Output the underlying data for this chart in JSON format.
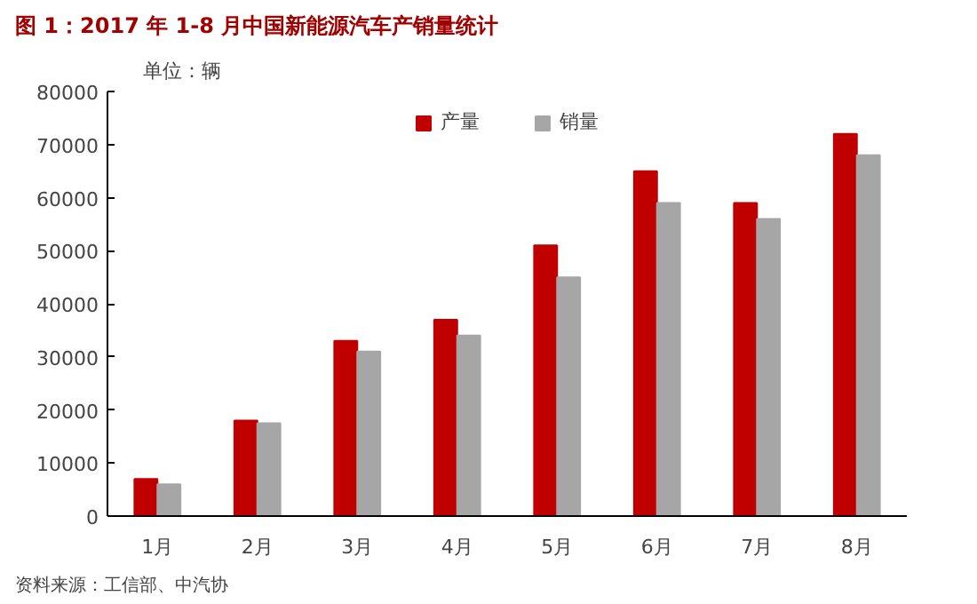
{
  "chart_data": {
    "type": "bar",
    "title": "图 1：2017 年 1-8 月中国新能源汽车产销量统计",
    "ylabel": "单位：辆",
    "categories": [
      "1月",
      "2月",
      "3月",
      "4月",
      "5月",
      "6月",
      "7月",
      "8月"
    ],
    "series": [
      {
        "name": "产量",
        "color": "#c00000",
        "values": [
          7000,
          18000,
          33000,
          37000,
          51000,
          65000,
          59000,
          72000
        ]
      },
      {
        "name": "销量",
        "color": "#a6a6a6",
        "values": [
          6000,
          17500,
          31000,
          34000,
          45000,
          59000,
          56000,
          68000
        ]
      }
    ],
    "ylim": [
      0,
      80000
    ],
    "yticks": [
      0,
      10000,
      20000,
      30000,
      40000,
      50000,
      60000,
      70000,
      80000
    ],
    "grid": false,
    "legend": "top",
    "annotations": [
      "资料来源：工信部、中汽协"
    ]
  }
}
